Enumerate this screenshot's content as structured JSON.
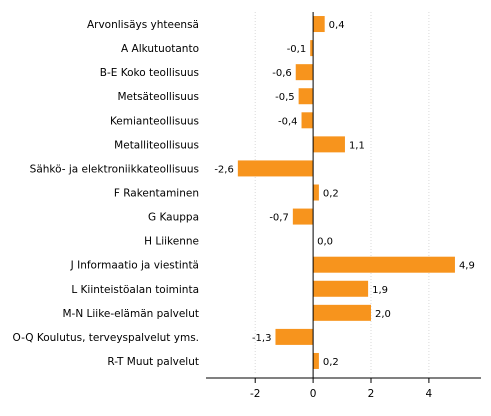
{
  "chart_data": {
    "type": "bar",
    "orientation": "horizontal",
    "categories": [
      "Arvonlisäys yhteensä",
      "A Alkutuotanto",
      "B-E Koko teollisuus",
      "Metsäteollisuus",
      "Kemianteollisuus",
      "Metalliteollisuus",
      "Sähkö- ja elektroniikkateollisuus",
      "F Rakentaminen",
      "G Kauppa",
      "H Liikenne",
      "J Informaatio ja viestintä",
      "L Kiinteistöalan toiminta",
      "M-N Liike-elämän palvelut",
      "O-Q Koulutus, terveyspalvelut yms.",
      "R-T Muut palvelut"
    ],
    "values": [
      0.4,
      -0.1,
      -0.6,
      -0.5,
      -0.4,
      1.1,
      -2.6,
      0.2,
      -0.7,
      0.0,
      4.9,
      1.9,
      2.0,
      -1.3,
      0.2
    ],
    "value_labels": [
      "0,4",
      "-0,1",
      "-0,6",
      "-0,5",
      "-0,4",
      "1,1",
      "-2,6",
      "0,2",
      "-0,7",
      "0,0",
      "4,9",
      "1,9",
      "2,0",
      "-1,3",
      "0,2"
    ],
    "xlim": [
      -3.7,
      5.8
    ],
    "xticks": [
      -2,
      0,
      2,
      4
    ],
    "xtick_labels": [
      "-2",
      "0",
      "2",
      "4"
    ],
    "grid": "vertical",
    "bar_color": "#f7941d",
    "grid_color": "#d9d9d9",
    "axis_color": "#000000"
  }
}
